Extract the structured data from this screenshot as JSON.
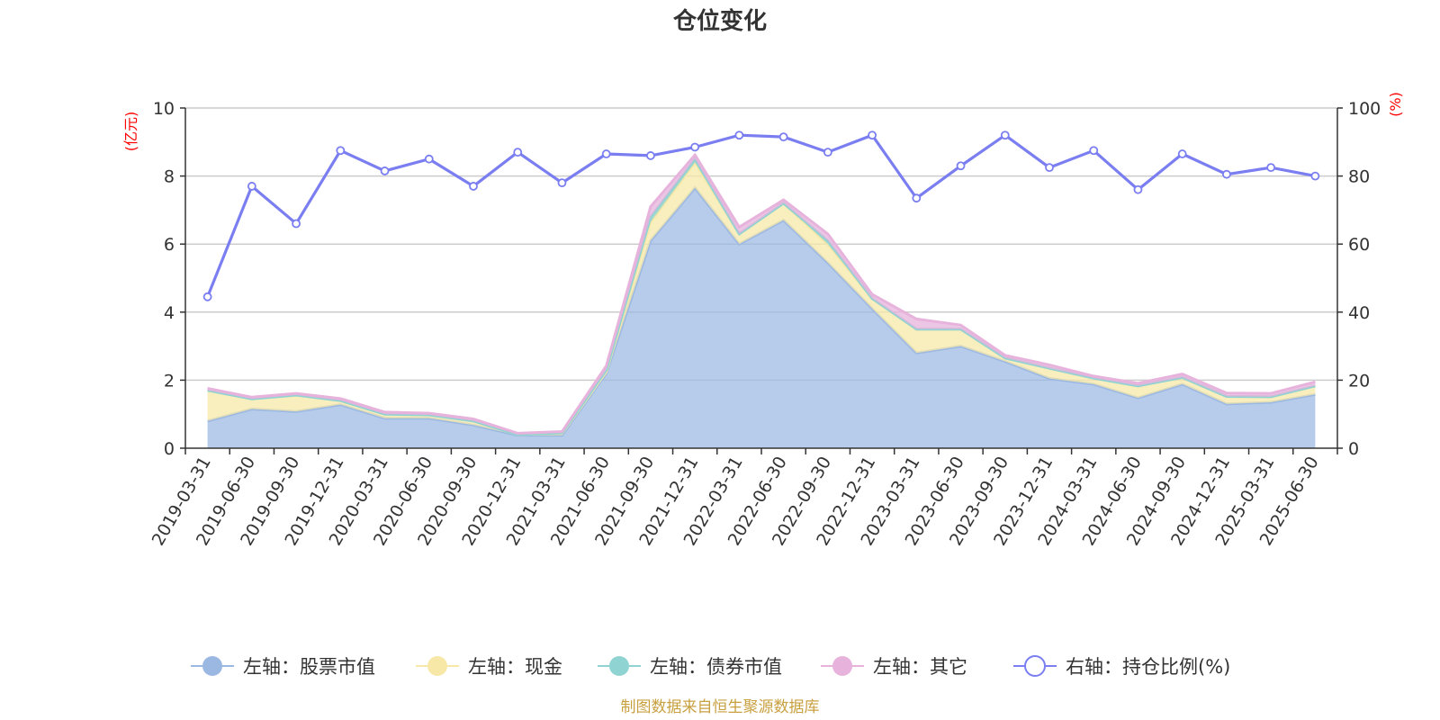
{
  "title": "仓位变化",
  "left_axis_unit": "(亿元)",
  "right_axis_unit": "(%)",
  "source": "制图数据来自恒生聚源数据库",
  "colors": {
    "stock": "#9bb8e3",
    "cash": "#f7e8a8",
    "bond": "#8fd3d3",
    "other": "#e7b3dc",
    "ratio": "#7a7ef0"
  },
  "chart_data": {
    "type": "area",
    "title": "仓位变化",
    "categories": [
      "2019-03-31",
      "2019-06-30",
      "2019-09-30",
      "2019-12-31",
      "2020-03-31",
      "2020-06-30",
      "2020-09-30",
      "2020-12-31",
      "2021-03-31",
      "2021-06-30",
      "2021-09-30",
      "2021-12-31",
      "2022-03-31",
      "2022-06-30",
      "2022-09-30",
      "2022-12-31",
      "2023-03-31",
      "2023-06-30",
      "2023-09-30",
      "2023-12-31",
      "2024-03-31",
      "2024-06-30",
      "2024-09-30",
      "2024-12-31",
      "2025-03-31",
      "2025-06-30"
    ],
    "left_axis": {
      "label": "(亿元)",
      "ylim": [
        0,
        10
      ],
      "ticks": [
        0,
        2,
        4,
        6,
        8,
        10
      ]
    },
    "right_axis": {
      "label": "(%)",
      "ylim": [
        0,
        100
      ],
      "ticks": [
        0,
        20,
        40,
        60,
        80,
        100
      ]
    },
    "grid": true,
    "legend_position": "bottom",
    "series": [
      {
        "name": "左轴：股票市值",
        "axis": "left",
        "stack": true,
        "values": [
          0.8,
          1.15,
          1.08,
          1.28,
          0.88,
          0.88,
          0.68,
          0.38,
          0.38,
          2.2,
          6.1,
          7.65,
          6.0,
          6.7,
          5.45,
          4.1,
          2.8,
          3.0,
          2.55,
          2.05,
          1.88,
          1.48,
          1.88,
          1.3,
          1.35,
          1.58
        ]
      },
      {
        "name": "左轴：现金",
        "axis": "left",
        "stack": true,
        "values": [
          0.9,
          0.3,
          0.48,
          0.12,
          0.12,
          0.1,
          0.12,
          0.02,
          0.05,
          0.05,
          0.55,
          0.75,
          0.3,
          0.5,
          0.55,
          0.3,
          0.7,
          0.5,
          0.1,
          0.3,
          0.18,
          0.35,
          0.2,
          0.22,
          0.16,
          0.25
        ]
      },
      {
        "name": "左轴：债券市值",
        "axis": "left",
        "stack": true,
        "values": [
          0,
          0,
          0,
          0,
          0,
          0,
          0,
          0,
          0.02,
          0.05,
          0.15,
          0.1,
          0,
          0,
          0.1,
          0,
          0,
          0,
          0,
          0,
          0,
          0,
          0,
          0,
          0,
          0
        ]
      },
      {
        "name": "左轴：其它",
        "axis": "left",
        "stack": true,
        "values": [
          0.06,
          0.05,
          0.05,
          0.06,
          0.06,
          0.05,
          0.06,
          0.04,
          0.04,
          0.12,
          0.3,
          0.12,
          0.2,
          0.1,
          0.2,
          0.12,
          0.3,
          0.12,
          0.08,
          0.1,
          0.06,
          0.08,
          0.1,
          0.1,
          0.1,
          0.12
        ]
      },
      {
        "name": "右轴：持仓比例(%)",
        "axis": "right",
        "type": "line",
        "values": [
          44.5,
          77,
          66,
          87.5,
          81.5,
          85,
          77,
          87,
          78,
          86.5,
          86,
          88.5,
          92,
          91.5,
          87,
          92,
          73.5,
          83,
          92,
          82.5,
          87.5,
          76,
          86.5,
          80.5,
          82.5,
          80
        ]
      }
    ]
  }
}
